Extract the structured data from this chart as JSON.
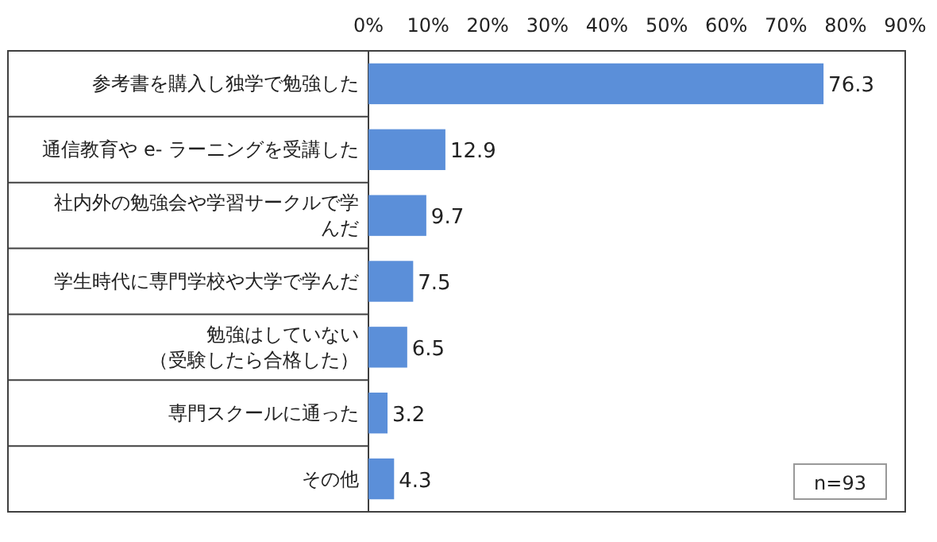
{
  "chart_data": {
    "type": "bar",
    "orientation": "horizontal",
    "categories": [
      "参考書を購入し独学で勉強した",
      "通信教育や e- ラーニングを受講した",
      "社内外の勉強会や学習サークルで学んだ",
      "学生時代に専門学校や大学で学んだ",
      "勉強はしていない（受験したら合格した）",
      "専門スクールに通った",
      "その他"
    ],
    "values": [
      76.3,
      12.9,
      9.7,
      7.5,
      6.5,
      3.2,
      4.3
    ],
    "color": "#5b8fd9",
    "xlim": [
      0,
      90
    ],
    "xticks": [
      {
        "value": 0,
        "label": "0%"
      },
      {
        "value": 10,
        "label": "10%"
      },
      {
        "value": 20,
        "label": "20%"
      },
      {
        "value": 30,
        "label": "30%"
      },
      {
        "value": 40,
        "label": "40%"
      },
      {
        "value": 50,
        "label": "50%"
      },
      {
        "value": 60,
        "label": "60%"
      },
      {
        "value": 70,
        "label": "70%"
      },
      {
        "value": 80,
        "label": "80%"
      },
      {
        "value": 90,
        "label": "90%"
      }
    ],
    "data_labels": true,
    "grid": false,
    "annotations": [
      "n=93"
    ]
  }
}
